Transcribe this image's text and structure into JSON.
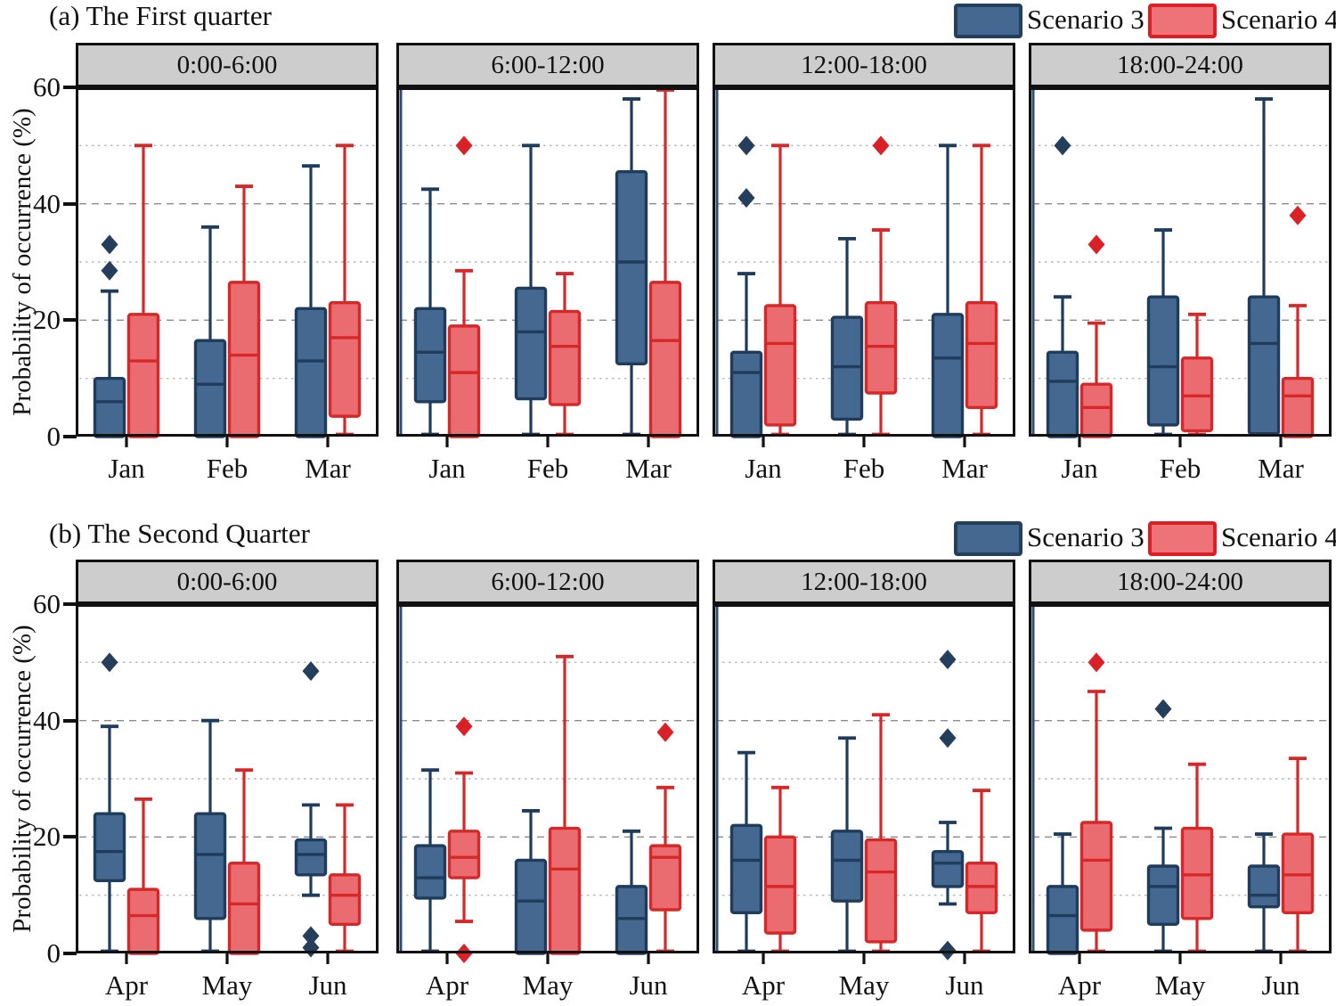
{
  "figure": {
    "row_a_title": "(a) The First quarter",
    "row_b_title": "(b) The Second Quarter"
  },
  "legend": {
    "items": [
      {
        "label": "Scenario 3",
        "fill": "#44688F",
        "border": "#233F5C"
      },
      {
        "label": "Scenario 4",
        "fill": "#EE7378",
        "border": "#DC1F26"
      }
    ]
  },
  "axis": {
    "y_label": "Probability of occurrence  (%)",
    "y_ticks": [
      0,
      20,
      40,
      60
    ],
    "ylim": [
      0,
      60
    ],
    "grid_major": [
      20,
      40
    ],
    "grid_minor": [
      10,
      30,
      50
    ],
    "grid_on": true
  },
  "colors": {
    "s3_fill": "#44688F",
    "s3_border": "#1F3C5C",
    "s3_outlier": "#243E5C",
    "s4_fill": "#EA6C70",
    "s4_border": "#D62829",
    "s4_outlier": "#DA2127",
    "panel_border": "#111111",
    "header_bg": "#CDCDCD",
    "grid_major": "#8C8C8C",
    "grid_minor": "#B6B6B6",
    "left_spine_blue": "#2F4E75"
  },
  "chart_data": {
    "type": "boxplot",
    "title": "Probability of occurrence by quarter and time of day",
    "ylabel": "Probability of occurrence (%)",
    "ylim": [
      0,
      60
    ],
    "legend_position": "top-right",
    "rows": [
      {
        "title": "(a) The First quarter",
        "categories": [
          "Jan",
          "Feb",
          "Mar"
        ],
        "panels": [
          {
            "header": "0:00-6:00",
            "series": [
              {
                "name": "Scenario 3",
                "boxes": [
                  {
                    "month": "Jan",
                    "low": 0,
                    "q1": 0,
                    "median": 6,
                    "q3": 10,
                    "high": 25,
                    "outliers": [
                      28.5,
                      33
                    ]
                  },
                  {
                    "month": "Feb",
                    "low": 0,
                    "q1": 0,
                    "median": 9,
                    "q3": 16.5,
                    "high": 36,
                    "outliers": []
                  },
                  {
                    "month": "Mar",
                    "low": 0,
                    "q1": 0,
                    "median": 13,
                    "q3": 22,
                    "high": 46.5,
                    "outliers": []
                  }
                ]
              },
              {
                "name": "Scenario 4",
                "boxes": [
                  {
                    "month": "Jan",
                    "low": 0,
                    "q1": 0,
                    "median": 13,
                    "q3": 21,
                    "high": 50,
                    "outliers": []
                  },
                  {
                    "month": "Feb",
                    "low": 0,
                    "q1": 0,
                    "median": 14,
                    "q3": 26.5,
                    "high": 43,
                    "outliers": []
                  },
                  {
                    "month": "Mar",
                    "low": 0,
                    "q1": 3.5,
                    "median": 17,
                    "q3": 23,
                    "high": 50,
                    "outliers": []
                  }
                ]
              }
            ]
          },
          {
            "header": "6:00-12:00",
            "series": [
              {
                "name": "Scenario 3",
                "boxes": [
                  {
                    "month": "Jan",
                    "low": 0,
                    "q1": 6,
                    "median": 14.5,
                    "q3": 22,
                    "high": 42.5,
                    "outliers": []
                  },
                  {
                    "month": "Feb",
                    "low": 0,
                    "q1": 6.5,
                    "median": 18,
                    "q3": 25.5,
                    "high": 50,
                    "outliers": []
                  },
                  {
                    "month": "Mar",
                    "low": 0,
                    "q1": 12.5,
                    "median": 30,
                    "q3": 45.5,
                    "high": 58,
                    "outliers": []
                  }
                ]
              },
              {
                "name": "Scenario 4",
                "boxes": [
                  {
                    "month": "Jan",
                    "low": 0,
                    "q1": 0,
                    "median": 11,
                    "q3": 19,
                    "high": 28.5,
                    "outliers": [
                      50
                    ]
                  },
                  {
                    "month": "Feb",
                    "low": 0,
                    "q1": 5.5,
                    "median": 15.5,
                    "q3": 21.5,
                    "high": 28,
                    "outliers": []
                  },
                  {
                    "month": "Mar",
                    "low": 0,
                    "q1": 0,
                    "median": 16.5,
                    "q3": 26.5,
                    "high": 60,
                    "outliers": []
                  }
                ]
              }
            ]
          },
          {
            "header": "12:00-18:00",
            "series": [
              {
                "name": "Scenario 3",
                "boxes": [
                  {
                    "month": "Jan",
                    "low": 0,
                    "q1": 0,
                    "median": 11,
                    "q3": 14.5,
                    "high": 28,
                    "outliers": [
                      41,
                      50
                    ]
                  },
                  {
                    "month": "Feb",
                    "low": 0,
                    "q1": 3,
                    "median": 12,
                    "q3": 20.5,
                    "high": 34,
                    "outliers": []
                  },
                  {
                    "month": "Mar",
                    "low": 0,
                    "q1": 0,
                    "median": 13.5,
                    "q3": 21,
                    "high": 50,
                    "outliers": []
                  }
                ]
              },
              {
                "name": "Scenario 4",
                "boxes": [
                  {
                    "month": "Jan",
                    "low": 0,
                    "q1": 2,
                    "median": 16,
                    "q3": 22.5,
                    "high": 50,
                    "outliers": []
                  },
                  {
                    "month": "Feb",
                    "low": 0,
                    "q1": 7.5,
                    "median": 15.5,
                    "q3": 23,
                    "high": 35.5,
                    "outliers": [
                      50
                    ]
                  },
                  {
                    "month": "Mar",
                    "low": 0,
                    "q1": 5,
                    "median": 16,
                    "q3": 23,
                    "high": 50,
                    "outliers": []
                  }
                ]
              }
            ]
          },
          {
            "header": "18:00-24:00",
            "series": [
              {
                "name": "Scenario 3",
                "boxes": [
                  {
                    "month": "Jan",
                    "low": 0,
                    "q1": 0,
                    "median": 9.5,
                    "q3": 14.5,
                    "high": 24,
                    "outliers": [
                      50
                    ]
                  },
                  {
                    "month": "Feb",
                    "low": 0,
                    "q1": 2,
                    "median": 12,
                    "q3": 24,
                    "high": 35.5,
                    "outliers": []
                  },
                  {
                    "month": "Mar",
                    "low": 0,
                    "q1": 0.5,
                    "median": 16,
                    "q3": 24,
                    "high": 58,
                    "outliers": []
                  }
                ]
              },
              {
                "name": "Scenario 4",
                "boxes": [
                  {
                    "month": "Jan",
                    "low": 0,
                    "q1": 0,
                    "median": 5,
                    "q3": 9,
                    "high": 19.5,
                    "outliers": [
                      33
                    ]
                  },
                  {
                    "month": "Feb",
                    "low": 0,
                    "q1": 1,
                    "median": 7,
                    "q3": 13.5,
                    "high": 21,
                    "outliers": []
                  },
                  {
                    "month": "Mar",
                    "low": 0,
                    "q1": 0,
                    "median": 7,
                    "q3": 10,
                    "high": 22.5,
                    "outliers": [
                      38
                    ]
                  }
                ]
              }
            ]
          }
        ]
      },
      {
        "title": "(b) The Second Quarter",
        "categories": [
          "Apr",
          "May",
          "Jun"
        ],
        "panels": [
          {
            "header": "0:00-6:00",
            "series": [
              {
                "name": "Scenario 3",
                "boxes": [
                  {
                    "month": "Apr",
                    "low": 0,
                    "q1": 12.5,
                    "median": 17.5,
                    "q3": 24,
                    "high": 39,
                    "outliers": [
                      50
                    ]
                  },
                  {
                    "month": "May",
                    "low": 0,
                    "q1": 6,
                    "median": 17,
                    "q3": 24,
                    "high": 40,
                    "outliers": []
                  },
                  {
                    "month": "Jun",
                    "low": 10,
                    "q1": 13.5,
                    "median": 17,
                    "q3": 19.5,
                    "high": 25.5,
                    "outliers": [
                      48.5,
                      3,
                      1
                    ]
                  }
                ]
              },
              {
                "name": "Scenario 4",
                "boxes": [
                  {
                    "month": "Apr",
                    "low": 0,
                    "q1": 0,
                    "median": 6.5,
                    "q3": 11,
                    "high": 26.5,
                    "outliers": []
                  },
                  {
                    "month": "May",
                    "low": 0,
                    "q1": 0,
                    "median": 8.5,
                    "q3": 15.5,
                    "high": 31.5,
                    "outliers": []
                  },
                  {
                    "month": "Jun",
                    "low": 0,
                    "q1": 5,
                    "median": 10,
                    "q3": 13.5,
                    "high": 25.5,
                    "outliers": []
                  }
                ]
              }
            ]
          },
          {
            "header": "6:00-12:00",
            "series": [
              {
                "name": "Scenario 3",
                "boxes": [
                  {
                    "month": "Apr",
                    "low": 0,
                    "q1": 9.5,
                    "median": 13,
                    "q3": 18.5,
                    "high": 31.5,
                    "outliers": []
                  },
                  {
                    "month": "May",
                    "low": 0,
                    "q1": 0,
                    "median": 9,
                    "q3": 16,
                    "high": 24.5,
                    "outliers": []
                  },
                  {
                    "month": "Jun",
                    "low": 0,
                    "q1": 0,
                    "median": 6,
                    "q3": 11.5,
                    "high": 21,
                    "outliers": []
                  }
                ]
              },
              {
                "name": "Scenario 4",
                "boxes": [
                  {
                    "month": "Apr",
                    "low": 5.5,
                    "q1": 13,
                    "median": 16.5,
                    "q3": 21,
                    "high": 31,
                    "outliers": [
                      39,
                      0
                    ]
                  },
                  {
                    "month": "May",
                    "low": 0,
                    "q1": 0,
                    "median": 14.5,
                    "q3": 21.5,
                    "high": 51,
                    "outliers": []
                  },
                  {
                    "month": "Jun",
                    "low": 0,
                    "q1": 7.5,
                    "median": 16.5,
                    "q3": 18.5,
                    "high": 28.5,
                    "outliers": [
                      38
                    ]
                  }
                ]
              }
            ]
          },
          {
            "header": "12:00-18:00",
            "series": [
              {
                "name": "Scenario 3",
                "boxes": [
                  {
                    "month": "Apr",
                    "low": 0,
                    "q1": 7,
                    "median": 16,
                    "q3": 22,
                    "high": 34.5,
                    "outliers": []
                  },
                  {
                    "month": "May",
                    "low": 0,
                    "q1": 9,
                    "median": 16,
                    "q3": 21,
                    "high": 37,
                    "outliers": []
                  },
                  {
                    "month": "Jun",
                    "low": 8.5,
                    "q1": 11.5,
                    "median": 15.5,
                    "q3": 17.5,
                    "high": 22.5,
                    "outliers": [
                      50.5,
                      37,
                      0.5
                    ]
                  }
                ]
              },
              {
                "name": "Scenario 4",
                "boxes": [
                  {
                    "month": "Apr",
                    "low": 0,
                    "q1": 3.5,
                    "median": 11.5,
                    "q3": 20,
                    "high": 28.5,
                    "outliers": []
                  },
                  {
                    "month": "May",
                    "low": 0,
                    "q1": 2,
                    "median": 14,
                    "q3": 19.5,
                    "high": 41,
                    "outliers": []
                  },
                  {
                    "month": "Jun",
                    "low": 0,
                    "q1": 7,
                    "median": 11.5,
                    "q3": 15.5,
                    "high": 28,
                    "outliers": []
                  }
                ]
              }
            ]
          },
          {
            "header": "18:00-24:00",
            "series": [
              {
                "name": "Scenario 3",
                "boxes": [
                  {
                    "month": "Apr",
                    "low": 0,
                    "q1": 0,
                    "median": 6.5,
                    "q3": 11.5,
                    "high": 20.5,
                    "outliers": []
                  },
                  {
                    "month": "May",
                    "low": 0,
                    "q1": 5,
                    "median": 11.5,
                    "q3": 15,
                    "high": 21.5,
                    "outliers": [
                      42
                    ]
                  },
                  {
                    "month": "Jun",
                    "low": 0,
                    "q1": 8,
                    "median": 10,
                    "q3": 15,
                    "high": 20.5,
                    "outliers": []
                  }
                ]
              },
              {
                "name": "Scenario 4",
                "boxes": [
                  {
                    "month": "Apr",
                    "low": 0,
                    "q1": 4,
                    "median": 16,
                    "q3": 22.5,
                    "high": 45,
                    "outliers": [
                      50
                    ]
                  },
                  {
                    "month": "May",
                    "low": 0,
                    "q1": 6,
                    "median": 13.5,
                    "q3": 21.5,
                    "high": 32.5,
                    "outliers": []
                  },
                  {
                    "month": "Jun",
                    "low": 0,
                    "q1": 7,
                    "median": 13.5,
                    "q3": 20.5,
                    "high": 33.5,
                    "outliers": []
                  }
                ]
              }
            ]
          }
        ]
      }
    ]
  }
}
